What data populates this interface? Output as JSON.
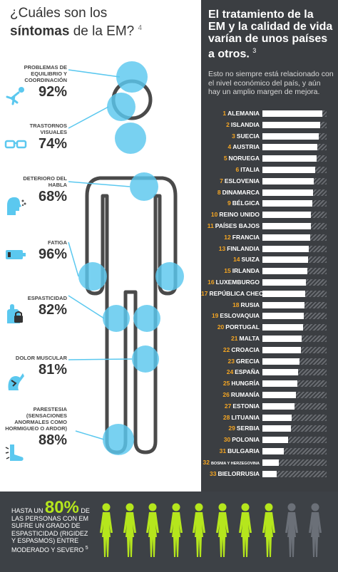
{
  "left": {
    "title_line1": "¿Cuáles son los",
    "title_line2_bold": "síntomas",
    "title_line2_rest": " de la EM?",
    "title_ref": "4",
    "symptoms": [
      {
        "label": "PROBLEMAS DE EQUILIBRIO Y COORDINACIÓN",
        "pct": "92%",
        "icon": "falling-person-icon"
      },
      {
        "label": "TRASTORNOS VISUALES",
        "pct": "74%",
        "icon": "glasses-icon"
      },
      {
        "label": "DETERIORO DEL HABLA",
        "pct": "68%",
        "icon": "speech-head-icon"
      },
      {
        "label": "FATIGA",
        "pct": "96%",
        "icon": "low-battery-icon"
      },
      {
        "label": "ESPASTICIDAD",
        "pct": "82%",
        "icon": "locked-hand-icon"
      },
      {
        "label": "DOLOR MUSCULAR",
        "pct": "81%",
        "icon": "muscle-pain-icon"
      },
      {
        "label": "PARESTESIA (SENSACIONES ANORMALES COMO HORMIGUEO O ARDOR)",
        "pct": "88%",
        "icon": "tingling-foot-icon"
      }
    ]
  },
  "right": {
    "title": "El tratamiento de la EM y la calidad de vida varían de unos países a otros.",
    "title_ref": "3",
    "subtitle": "Esto no siempre está relacionado con el nivel económico del país, y aún hay un amplio margen de mejora.",
    "countries": [
      {
        "num": "1",
        "name": "ALEMANIA",
        "score": 0.93
      },
      {
        "num": "2",
        "name": "ISLANDIA",
        "score": 0.9
      },
      {
        "num": "3",
        "name": "SUECIA",
        "score": 0.88
      },
      {
        "num": "4",
        "name": "AUSTRIA",
        "score": 0.86
      },
      {
        "num": "5",
        "name": "NORUEGA",
        "score": 0.84
      },
      {
        "num": "6",
        "name": "ITALIA",
        "score": 0.82
      },
      {
        "num": "7",
        "name": "ESLOVENIA",
        "score": 0.8
      },
      {
        "num": "8",
        "name": "DINAMARCA",
        "score": 0.79
      },
      {
        "num": "9",
        "name": "BÉLGICA",
        "score": 0.78
      },
      {
        "num": "10",
        "name": "REINO UNIDO",
        "score": 0.76
      },
      {
        "num": "11",
        "name": "PAÍSES BAJOS",
        "score": 0.75
      },
      {
        "num": "12",
        "name": "FRANCIA",
        "score": 0.74
      },
      {
        "num": "13",
        "name": "FINLANDIA",
        "score": 0.72
      },
      {
        "num": "14",
        "name": "SUIZA",
        "score": 0.71
      },
      {
        "num": "15",
        "name": "IRLANDA",
        "score": 0.7
      },
      {
        "num": "16",
        "name": "LUXEMBURGO",
        "score": 0.68
      },
      {
        "num": "17",
        "name": "REPÚBLICA CHECA",
        "score": 0.67
      },
      {
        "num": "18",
        "name": "RUSIA",
        "score": 0.65
      },
      {
        "num": "19",
        "name": "ESLOVAQUIA",
        "score": 0.64
      },
      {
        "num": "20",
        "name": "PORTUGAL",
        "score": 0.63
      },
      {
        "num": "21",
        "name": "MALTA",
        "score": 0.61
      },
      {
        "num": "22",
        "name": "CROACIA",
        "score": 0.6
      },
      {
        "num": "23",
        "name": "GRECIA",
        "score": 0.58
      },
      {
        "num": "24",
        "name": "ESPAÑA",
        "score": 0.56
      },
      {
        "num": "25",
        "name": "HUNGRÍA",
        "score": 0.54
      },
      {
        "num": "26",
        "name": "RUMANÍA",
        "score": 0.52
      },
      {
        "num": "27",
        "name": "ESTONIA",
        "score": 0.5
      },
      {
        "num": "28",
        "name": "LITUANIA",
        "score": 0.46
      },
      {
        "num": "29",
        "name": "SERBIA",
        "score": 0.44
      },
      {
        "num": "30",
        "name": "POLONIA",
        "score": 0.4
      },
      {
        "num": "31",
        "name": "BULGARIA",
        "score": 0.33
      },
      {
        "num": "32",
        "name": "BOSNIA Y HERZEGOVINA",
        "score": 0.26
      },
      {
        "num": "33",
        "name": "BIELORRUSIA",
        "score": 0.22
      }
    ]
  },
  "bottom": {
    "prefix": "HASTA UN",
    "big": "80%",
    "rest": "DE LAS PERSONAS CON EM SUFRE UN GRADO DE ESPASTICIDAD (RIGIDEZ Y ESPASMOS) ENTRE MODERADO Y SEVERO",
    "ref": "5",
    "figures_total": 10,
    "figures_highlighted": 8
  },
  "colors": {
    "accent_blue": "#5bc8ef",
    "accent_green": "#b5e61d",
    "accent_orange": "#f5a623",
    "dark_panel": "#3b3e42"
  }
}
